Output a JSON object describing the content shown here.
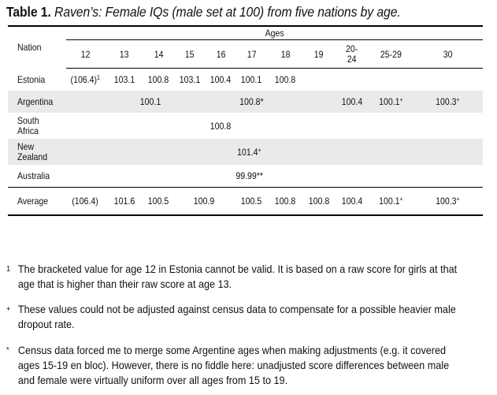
{
  "caption": {
    "label": "Table 1.",
    "title": "Raven’s:  Female IQs (male set at 100) from five nations by age."
  },
  "table": {
    "nation_header": "Nation",
    "ages_header": "Ages",
    "age_columns": [
      "12",
      "13",
      "14",
      "15",
      "16",
      "17",
      "18",
      "19",
      "20-\n24",
      "25-29",
      "30"
    ],
    "rows": [
      {
        "nation": "Estonia",
        "cells": [
          "(106.4)",
          "103.1",
          "100.8",
          "103.1",
          "100.4",
          "100.1",
          "100.8"
        ],
        "note_mark": "1"
      },
      {
        "nation": "Argentina",
        "span_12_16": "100.1",
        "v17": "100.8*",
        "v20_24": "100.4",
        "v25_29": "100.1",
        "v30": "100.3",
        "note_plus": "+"
      },
      {
        "nation": "South\nAfrica",
        "value": "100.8"
      },
      {
        "nation": "New\nZealand",
        "value": "101.4",
        "note_plus": "+"
      },
      {
        "nation": "Australia",
        "value": "99.99**"
      }
    ],
    "average": {
      "label": "Average",
      "v12": "(106.4)",
      "v13": "101.6",
      "v14": "100.5",
      "v15_16": "100.9",
      "v17": "100.5",
      "v18": "100.8",
      "v19": "100.8",
      "v20_24": "100.4",
      "v25_29": "100.1",
      "v30": "100.3",
      "plus": "+"
    }
  },
  "notes": [
    {
      "marker": "1",
      "text": "The bracketed value for age 12 in Estonia cannot be valid.  It is based on a raw score for girls at that age that is higher than their raw score at age 13."
    },
    {
      "marker": "+",
      "text": "These values could not be adjusted against census data to compensate for a possible heavier male dropout rate."
    },
    {
      "marker": "*",
      "text": "Census data forced me to merge some Argentine ages when making adjustments (e.g. it covered ages 15-19 en bloc).  However, there is no fiddle here: unadjusted score differences between male and female were virtually uniform over all ages from 15 to 19."
    }
  ]
}
